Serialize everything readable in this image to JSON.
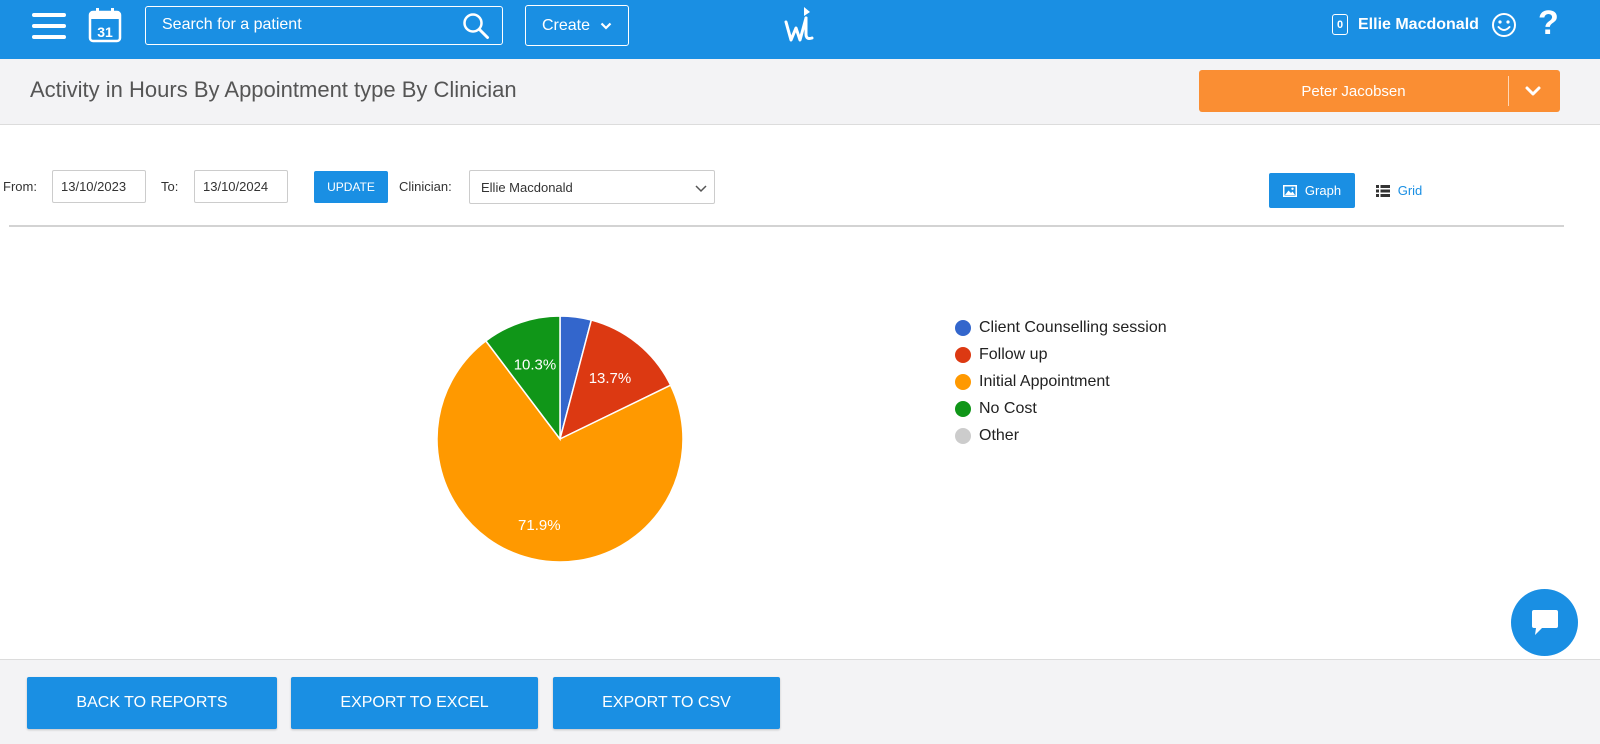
{
  "topbar": {
    "calendar_day": "31",
    "search_placeholder": "Search for a patient",
    "create_label": "Create",
    "notification_count": "0",
    "user_name": "Ellie Macdonald",
    "help_glyph": "?"
  },
  "header": {
    "title": "Activity in Hours By Appointment type By Clinician",
    "person_selector": "Peter Jacobsen"
  },
  "filters": {
    "from_label": "From:",
    "from_value": "13/10/2023",
    "to_label": "To:",
    "to_value": "13/10/2024",
    "update_label": "UPDATE",
    "clinician_label": "Clinician:",
    "clinician_value": "Ellie Macdonald",
    "view_graph_label": "Graph",
    "view_grid_label": "Grid"
  },
  "chart_data": {
    "type": "pie",
    "slices": [
      {
        "label": "Client Counselling session",
        "value": 4.1,
        "color": "#3366cc",
        "display": ""
      },
      {
        "label": "Follow up",
        "value": 13.7,
        "color": "#dc3912",
        "display": "13.7%"
      },
      {
        "label": "Initial Appointment",
        "value": 71.9,
        "color": "#ff9900",
        "display": "71.9%"
      },
      {
        "label": "No Cost",
        "value": 10.3,
        "color": "#109618",
        "display": "10.3%"
      },
      {
        "label": "Other",
        "value": 0,
        "color": "#cccccc",
        "display": ""
      }
    ],
    "legend_position": "right"
  },
  "footer": {
    "back_label": "BACK TO REPORTS",
    "excel_label": "EXPORT TO EXCEL",
    "csv_label": "EXPORT TO CSV"
  },
  "colors": {
    "primary": "#1a8fe3",
    "accent": "#fa8e33"
  }
}
